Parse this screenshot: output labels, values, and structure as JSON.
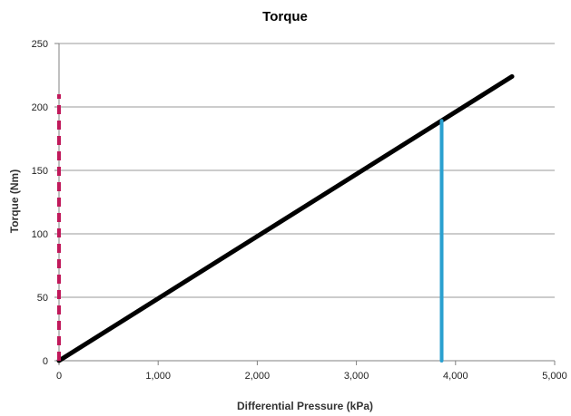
{
  "chart_data": {
    "type": "line",
    "title": "Torque",
    "xlabel": "Differential Pressure (kPa)",
    "ylabel": "Torque (Nm)",
    "xlim": [
      0,
      5000
    ],
    "ylim": [
      0,
      250
    ],
    "x_ticks": [
      {
        "value": 0,
        "label": "0"
      },
      {
        "value": 1000,
        "label": "1,000"
      },
      {
        "value": 2000,
        "label": "2,000"
      },
      {
        "value": 3000,
        "label": "3,000"
      },
      {
        "value": 4000,
        "label": "4,000"
      },
      {
        "value": 5000,
        "label": "5,000"
      }
    ],
    "y_ticks": [
      {
        "value": 0,
        "label": "0"
      },
      {
        "value": 50,
        "label": "50"
      },
      {
        "value": 100,
        "label": "100"
      },
      {
        "value": 150,
        "label": "150"
      },
      {
        "value": 200,
        "label": "200"
      },
      {
        "value": 250,
        "label": "250"
      }
    ],
    "grid": "horizontal",
    "legend": "none",
    "series": [
      {
        "color": "#000000",
        "style": "solid",
        "points": [
          {
            "x": 0,
            "y": 0
          },
          {
            "x": 4570,
            "y": 224
          }
        ]
      },
      {
        "color": "#2aa0d0",
        "style": "solid",
        "points": [
          {
            "x": 3860,
            "y": 0
          },
          {
            "x": 3860,
            "y": 189
          }
        ]
      },
      {
        "color": "#c0185a",
        "style": "dashed",
        "points": [
          {
            "x": 0,
            "y": 0
          },
          {
            "x": 0,
            "y": 210
          }
        ]
      }
    ]
  }
}
